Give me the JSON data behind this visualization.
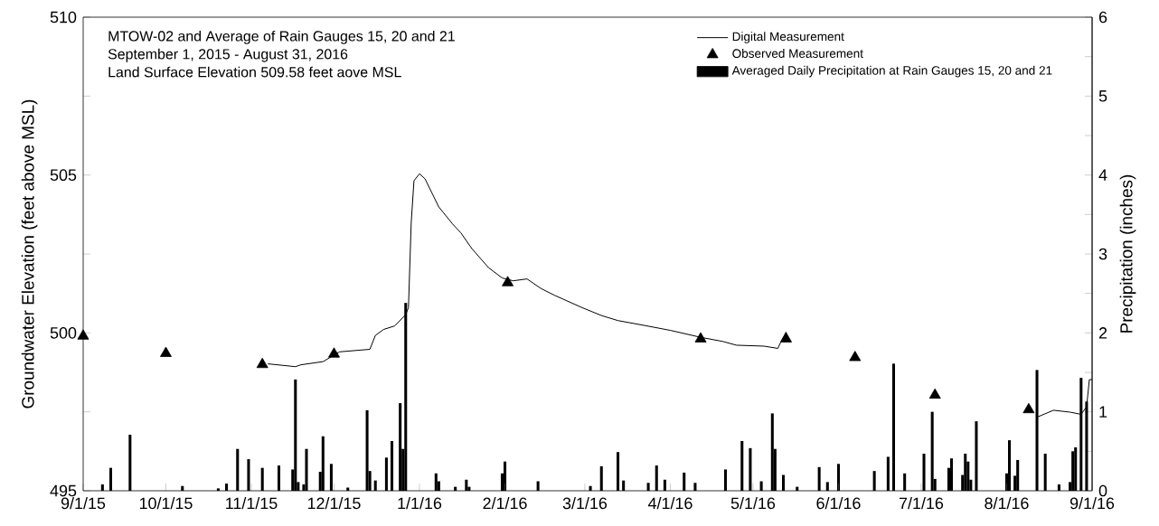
{
  "chart_data": {
    "type": "line",
    "title": "MTOW-02 and Average of Rain Gauges 15, 20 and 21",
    "subtitle": "September 1, 2015 - August 31, 2016",
    "annotations": [
      "Land Surface Elevation 509.58 feet aove MSL"
    ],
    "ylabel": "Groundwater Elevation (feet above MSL)",
    "y2label": "Precipitation (inches)",
    "xlim": [
      "2015-09-01",
      "2016-09-01"
    ],
    "xticks": [
      {
        "value": "2015-09-01",
        "label": "9/1/15"
      },
      {
        "value": "2015-10-01",
        "label": "10/1/15"
      },
      {
        "value": "2015-11-01",
        "label": "11/1/15"
      },
      {
        "value": "2015-12-01",
        "label": "12/1/15"
      },
      {
        "value": "2016-01-01",
        "label": "1/1/16"
      },
      {
        "value": "2016-02-01",
        "label": "2/1/16"
      },
      {
        "value": "2016-03-01",
        "label": "3/1/16"
      },
      {
        "value": "2016-04-01",
        "label": "4/1/16"
      },
      {
        "value": "2016-05-01",
        "label": "5/1/16"
      },
      {
        "value": "2016-06-01",
        "label": "6/1/16"
      },
      {
        "value": "2016-07-01",
        "label": "7/1/16"
      },
      {
        "value": "2016-08-01",
        "label": "8/1/16"
      },
      {
        "value": "2016-09-01",
        "label": "9/1/16"
      }
    ],
    "ylim": [
      495,
      510
    ],
    "yticks": [
      495,
      {
        "value": 497.5,
        "label": null
      },
      500,
      {
        "value": 502.5,
        "label": null
      },
      505,
      {
        "value": 507.5,
        "label": null
      },
      510
    ],
    "y2lim": [
      0,
      6
    ],
    "y2ticks": [
      0,
      {
        "value": 0.5,
        "label": null
      },
      1,
      {
        "value": 1.5,
        "label": null
      },
      2,
      {
        "value": 2.5,
        "label": null
      },
      3,
      {
        "value": 3.5,
        "label": null
      },
      4,
      {
        "value": 4.5,
        "label": null
      },
      5,
      {
        "value": 5.5,
        "label": null
      },
      6
    ],
    "legend": "top right",
    "series": [
      {
        "name": "Digital Measurement",
        "color": "#000000",
        "marker": "none",
        "line_style": "solid",
        "x": [
          "2015-11-07",
          "2015-11-17",
          "2015-11-19",
          "2015-11-27",
          "2015-12-03",
          "2015-12-14",
          "2015-12-16",
          "2015-12-19",
          "2015-12-23",
          "2015-12-27",
          "2015-12-28",
          "2015-12-29",
          "2015-12-30",
          "2016-01-01",
          "2016-01-03",
          "2016-01-08",
          "2016-01-13",
          "2016-01-16",
          "2016-01-20",
          "2016-01-26",
          "2016-01-31",
          "2016-02-04",
          "2016-02-09",
          "2016-02-14",
          "2016-02-19",
          "2016-02-29",
          "2016-03-07",
          "2016-03-13",
          "2016-03-23",
          "2016-04-01",
          "2016-04-12",
          "2016-04-20",
          "2016-04-25",
          "2016-05-05",
          "2016-05-10",
          "2016-05-11",
          "2016-05-13",
          "2016-06-01",
          "2016-08-12",
          "2016-08-18",
          "2016-08-24",
          "2016-08-28",
          "2016-08-30",
          "2016-08-31",
          "2016-09-01"
        ],
        "values": [
          499.02,
          498.93,
          498.99,
          499.09,
          499.4,
          499.48,
          499.92,
          500.11,
          500.22,
          500.58,
          500.8,
          503.5,
          504.82,
          505.04,
          504.88,
          503.99,
          503.45,
          503.17,
          502.67,
          502.07,
          501.74,
          501.65,
          501.71,
          501.41,
          501.19,
          500.8,
          500.55,
          500.39,
          500.23,
          500.08,
          499.86,
          499.73,
          499.61,
          499.58,
          499.51,
          499.7,
          500.03,
          null,
          497.33,
          497.55,
          497.49,
          497.42,
          497.66,
          498.52,
          498.52
        ]
      },
      {
        "type": "scatter",
        "name": "Observed Measurement",
        "color": "#000000",
        "marker": "triangle",
        "x": [
          "2015-09-01",
          "2015-10-01",
          "2015-11-05",
          "2015-12-01",
          "2016-02-02",
          "2016-04-12",
          "2016-05-13",
          "2016-06-07",
          "2016-07-06",
          "2016-08-09"
        ],
        "values": [
          499.9,
          499.35,
          499.0,
          499.33,
          501.59,
          499.81,
          499.81,
          499.22,
          498.03,
          497.57
        ]
      },
      {
        "type": "bar",
        "name": "Averaged Daily Precipitation at Rain Gauges 15, 20 and 21",
        "color": "#000000",
        "axis": "y2",
        "x": [
          "2015-09-08",
          "2015-09-11",
          "2015-09-18",
          "2015-10-07",
          "2015-10-20",
          "2015-10-23",
          "2015-10-27",
          "2015-10-31",
          "2015-11-05",
          "2015-11-11",
          "2015-11-16",
          "2015-11-17",
          "2015-11-18",
          "2015-11-20",
          "2015-11-21",
          "2015-11-26",
          "2015-11-27",
          "2015-11-30",
          "2015-12-06",
          "2015-12-13",
          "2015-12-14",
          "2015-12-16",
          "2015-12-20",
          "2015-12-22",
          "2015-12-25",
          "2015-12-26",
          "2015-12-27",
          "2016-01-07",
          "2016-01-08",
          "2016-01-14",
          "2016-01-18",
          "2016-01-19",
          "2016-01-31",
          "2016-02-01",
          "2016-02-13",
          "2016-03-03",
          "2016-03-07",
          "2016-03-13",
          "2016-03-15",
          "2016-03-24",
          "2016-03-27",
          "2016-03-30",
          "2016-04-06",
          "2016-04-10",
          "2016-04-21",
          "2016-04-27",
          "2016-04-30",
          "2016-05-04",
          "2016-05-08",
          "2016-05-09",
          "2016-05-12",
          "2016-05-17",
          "2016-05-25",
          "2016-05-28",
          "2016-06-01",
          "2016-06-14",
          "2016-06-19",
          "2016-06-21",
          "2016-06-25",
          "2016-07-02",
          "2016-07-05",
          "2016-07-06",
          "2016-07-11",
          "2016-07-12",
          "2016-07-16",
          "2016-07-17",
          "2016-07-18",
          "2016-07-19",
          "2016-07-21",
          "2016-08-01",
          "2016-08-02",
          "2016-08-04",
          "2016-08-05",
          "2016-08-12",
          "2016-08-15",
          "2016-08-20",
          "2016-08-24",
          "2016-08-25",
          "2016-08-26",
          "2016-08-28",
          "2016-08-30"
        ],
        "values": [
          0.08,
          0.29,
          0.71,
          0.06,
          0.03,
          0.09,
          0.53,
          0.4,
          0.29,
          0.32,
          0.27,
          1.41,
          0.11,
          0.08,
          0.53,
          0.24,
          0.69,
          0.34,
          0.04,
          1.02,
          0.25,
          0.13,
          0.42,
          0.63,
          1.11,
          0.53,
          2.38,
          0.22,
          0.12,
          0.05,
          0.14,
          0.05,
          0.22,
          0.37,
          0.12,
          0.06,
          0.31,
          0.49,
          0.13,
          0.1,
          0.32,
          0.14,
          0.23,
          0.1,
          0.27,
          0.63,
          0.54,
          0.12,
          0.98,
          0.53,
          0.2,
          0.05,
          0.3,
          0.11,
          0.34,
          0.25,
          0.43,
          1.61,
          0.22,
          0.47,
          1.0,
          0.15,
          0.29,
          0.41,
          0.2,
          0.47,
          0.37,
          0.14,
          0.88,
          0.22,
          0.64,
          0.19,
          0.39,
          1.53,
          0.47,
          0.08,
          0.11,
          0.5,
          0.55,
          1.43,
          1.13
        ]
      }
    ]
  }
}
